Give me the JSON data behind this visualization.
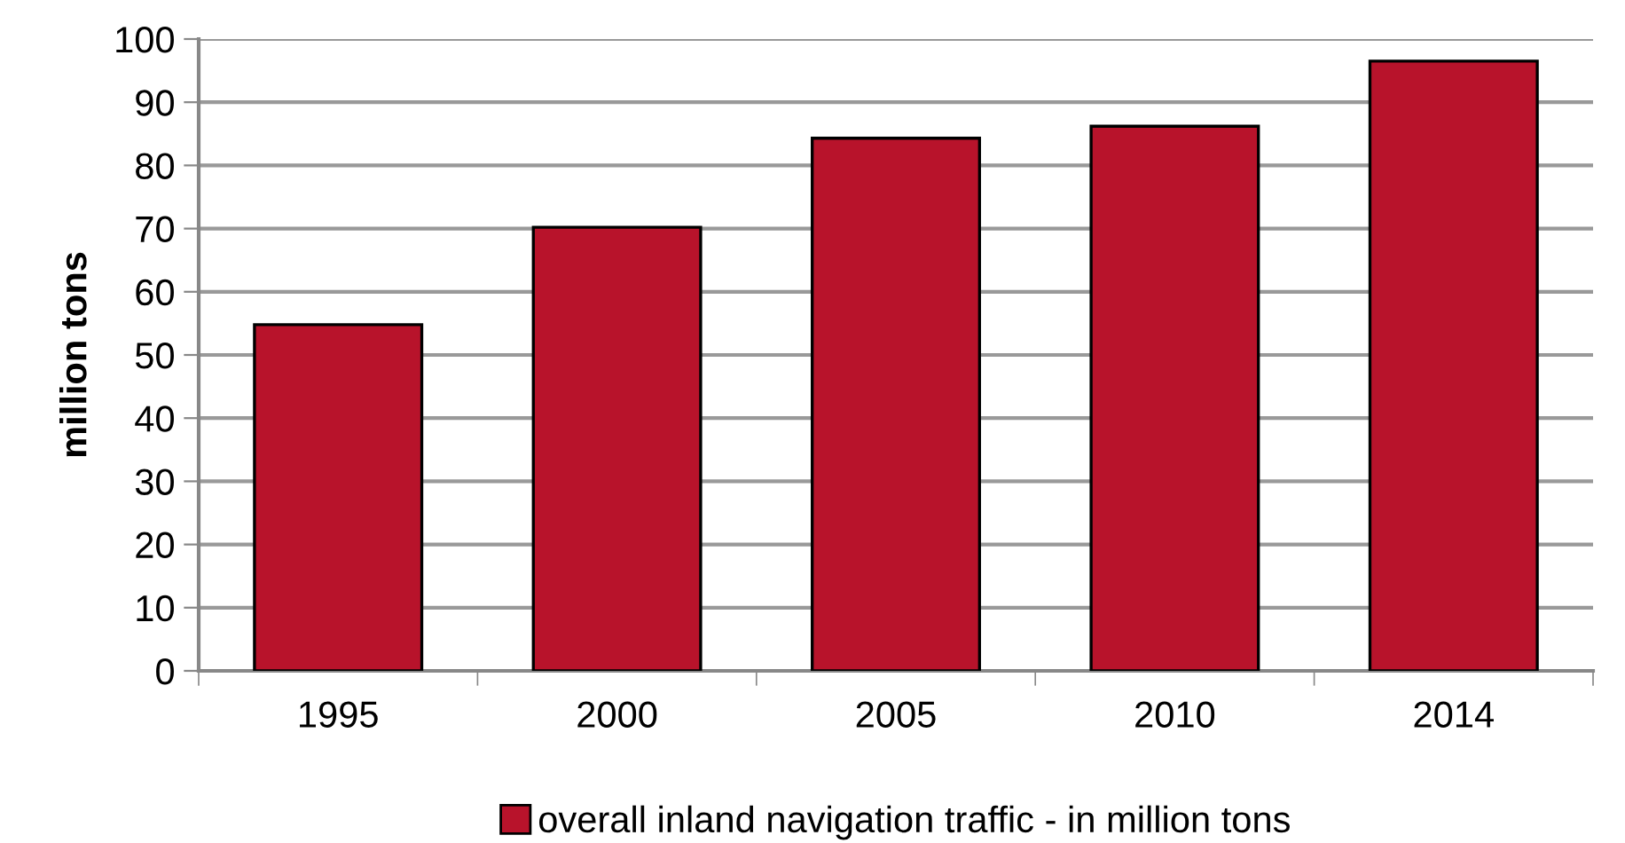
{
  "chart_data": {
    "type": "bar",
    "ylabel": "million tons",
    "categories": [
      "1995",
      "2000",
      "2005",
      "2010",
      "2014"
    ],
    "series": [
      {
        "name": "overall inland navigation traffic - in million tons",
        "color": "#b8132b",
        "values": [
          54.8,
          70.2,
          84.3,
          86.2,
          96.5
        ]
      }
    ],
    "ylim": [
      0,
      100
    ],
    "yticks": [
      0,
      10,
      20,
      30,
      40,
      50,
      60,
      70,
      80,
      90,
      100
    ],
    "grid": "y",
    "legend": "bottom"
  }
}
